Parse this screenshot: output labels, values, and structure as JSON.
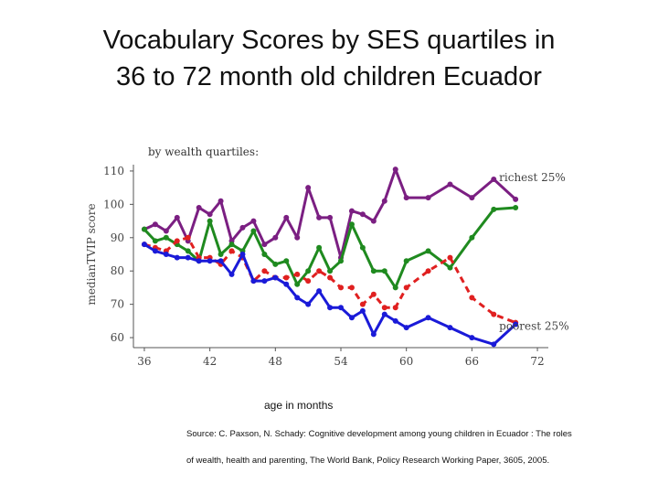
{
  "slide": {
    "title_line1": "Vocabulary Scores by SES quartiles in",
    "title_line2": "36 to 72 month old children Ecuador",
    "source_line1": "Source: C. Paxson, N. Schady: Cognitive development among young children in Ecuador : The roles",
    "source_line2": "of wealth, health and parenting, The World Bank, Policy Research Working Paper, 3605, 2005."
  },
  "chart_data": {
    "type": "line",
    "subtitle": "by wealth quartiles:",
    "xlabel": "age in months",
    "ylabel": "medianTVIP score",
    "xlim": [
      35,
      73
    ],
    "ylim": [
      57,
      113
    ],
    "x_ticks": [
      "36",
      "42",
      "48",
      "54",
      "60",
      "66",
      "72"
    ],
    "y_ticks": [
      "60",
      "70",
      "80",
      "90",
      "100",
      "110"
    ],
    "grid": false,
    "legend": "none",
    "annotations": [
      {
        "text": "richest 25%",
        "series": "richest"
      },
      {
        "text": "poorest 25%",
        "series": "poorest"
      }
    ],
    "series": [
      {
        "name": "richest 25%",
        "color": "#7b1f82",
        "style": "solid",
        "points": [
          [
            36,
            92.5
          ],
          [
            37,
            94
          ],
          [
            38,
            92
          ],
          [
            39,
            96
          ],
          [
            40,
            89
          ],
          [
            41,
            99
          ],
          [
            42,
            97
          ],
          [
            43,
            101
          ],
          [
            44,
            89
          ],
          [
            45,
            93
          ],
          [
            46,
            95
          ],
          [
            47,
            88
          ],
          [
            48,
            90
          ],
          [
            49,
            96
          ],
          [
            50,
            90
          ],
          [
            51,
            105
          ],
          [
            52,
            96
          ],
          [
            53,
            96
          ],
          [
            54,
            84
          ],
          [
            55,
            98
          ],
          [
            56,
            97
          ],
          [
            57,
            95
          ],
          [
            58,
            101
          ],
          [
            59,
            110.5
          ],
          [
            60,
            102
          ],
          [
            62,
            102
          ],
          [
            64,
            106
          ],
          [
            66,
            102
          ],
          [
            68,
            107.5
          ],
          [
            70,
            101.5
          ]
        ]
      },
      {
        "name": "",
        "color": "#1f8a1f",
        "style": "solid",
        "points": [
          [
            36,
            92.5
          ],
          [
            37,
            89
          ],
          [
            38,
            90
          ],
          [
            39,
            88
          ],
          [
            40,
            86
          ],
          [
            41,
            83
          ],
          [
            42,
            95
          ],
          [
            43,
            85
          ],
          [
            44,
            88
          ],
          [
            45,
            86
          ],
          [
            46,
            92
          ],
          [
            47,
            85
          ],
          [
            48,
            82
          ],
          [
            49,
            83
          ],
          [
            50,
            76
          ],
          [
            51,
            80
          ],
          [
            52,
            87
          ],
          [
            53,
            80
          ],
          [
            54,
            83
          ],
          [
            55,
            94
          ],
          [
            56,
            87
          ],
          [
            57,
            80
          ],
          [
            58,
            80
          ],
          [
            59,
            75
          ],
          [
            60,
            83
          ],
          [
            62,
            86
          ],
          [
            64,
            81
          ],
          [
            66,
            90
          ],
          [
            68,
            98.5
          ],
          [
            70,
            99
          ]
        ]
      },
      {
        "name": "",
        "color": "#e02020",
        "style": "dashed",
        "points": [
          [
            36,
            88
          ],
          [
            37,
            87
          ],
          [
            38,
            86
          ],
          [
            39,
            89
          ],
          [
            40,
            90
          ],
          [
            41,
            84
          ],
          [
            42,
            84
          ],
          [
            43,
            82
          ],
          [
            44,
            86
          ],
          [
            45,
            84
          ],
          [
            46,
            77
          ],
          [
            47,
            80
          ],
          [
            48,
            78
          ],
          [
            49,
            78
          ],
          [
            50,
            79
          ],
          [
            51,
            77
          ],
          [
            52,
            80
          ],
          [
            53,
            78
          ],
          [
            54,
            75
          ],
          [
            55,
            75
          ],
          [
            56,
            70
          ],
          [
            57,
            73
          ],
          [
            58,
            69
          ],
          [
            59,
            69
          ],
          [
            60,
            75
          ],
          [
            62,
            80
          ],
          [
            64,
            84
          ],
          [
            66,
            72
          ],
          [
            68,
            67
          ],
          [
            70,
            64.5
          ]
        ]
      },
      {
        "name": "poorest 25%",
        "color": "#1a1ad8",
        "style": "solid",
        "points": [
          [
            36,
            88
          ],
          [
            37,
            86
          ],
          [
            38,
            85
          ],
          [
            39,
            84
          ],
          [
            40,
            84
          ],
          [
            41,
            83
          ],
          [
            42,
            83
          ],
          [
            43,
            83
          ],
          [
            44,
            79
          ],
          [
            45,
            85
          ],
          [
            46,
            77
          ],
          [
            47,
            77
          ],
          [
            48,
            78
          ],
          [
            49,
            76
          ],
          [
            50,
            72
          ],
          [
            51,
            70
          ],
          [
            52,
            74
          ],
          [
            53,
            69
          ],
          [
            54,
            69
          ],
          [
            55,
            66
          ],
          [
            56,
            68
          ],
          [
            57,
            61
          ],
          [
            58,
            67
          ],
          [
            59,
            65
          ],
          [
            60,
            63
          ],
          [
            62,
            66
          ],
          [
            64,
            63
          ],
          [
            66,
            60
          ],
          [
            68,
            58
          ],
          [
            70,
            64
          ]
        ]
      }
    ]
  }
}
